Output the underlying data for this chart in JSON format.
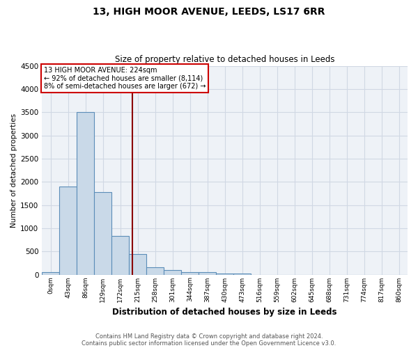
{
  "title": "13, HIGH MOOR AVENUE, LEEDS, LS17 6RR",
  "subtitle": "Size of property relative to detached houses in Leeds",
  "xlabel": "Distribution of detached houses by size in Leeds",
  "ylabel": "Number of detached properties",
  "bar_labels": [
    "0sqm",
    "43sqm",
    "86sqm",
    "129sqm",
    "172sqm",
    "215sqm",
    "258sqm",
    "301sqm",
    "344sqm",
    "387sqm",
    "430sqm",
    "473sqm",
    "516sqm",
    "559sqm",
    "602sqm",
    "645sqm",
    "688sqm",
    "731sqm",
    "774sqm",
    "817sqm",
    "860sqm"
  ],
  "bar_values": [
    50,
    1900,
    3500,
    1780,
    840,
    450,
    160,
    100,
    60,
    50,
    30,
    30,
    0,
    0,
    0,
    0,
    0,
    0,
    0,
    0,
    0
  ],
  "bar_color": "#c9d9e8",
  "bar_edge_color": "#5b8db8",
  "ylim": [
    0,
    4500
  ],
  "yticks": [
    0,
    500,
    1000,
    1500,
    2000,
    2500,
    3000,
    3500,
    4000,
    4500
  ],
  "property_line_color": "#8b0000",
  "annotation_text_line1": "13 HIGH MOOR AVENUE: 224sqm",
  "annotation_text_line2": "← 92% of detached houses are smaller (8,114)",
  "annotation_text_line3": "8% of semi-detached houses are larger (672) →",
  "footer_line1": "Contains HM Land Registry data © Crown copyright and database right 2024.",
  "footer_line2": "Contains public sector information licensed under the Open Government Licence v3.0.",
  "grid_color": "#d0d8e4",
  "background_color": "#eef2f7"
}
